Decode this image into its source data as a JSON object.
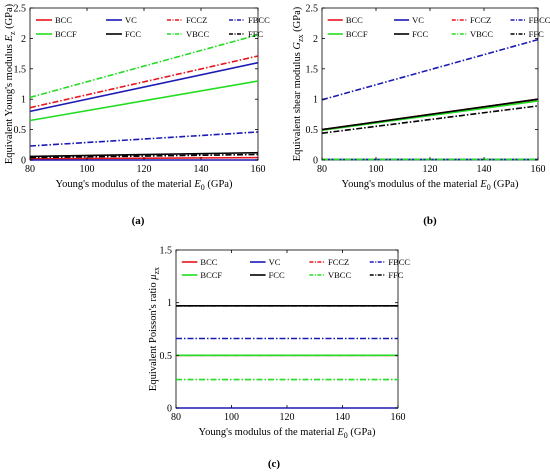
{
  "chart_data": [
    {
      "type": "line",
      "panel_label": "(a)",
      "xlabel_prefix": "Young's modulus of the material ",
      "xlabel_symbol": "E",
      "xlabel_sub": "0",
      "xlabel_suffix": " (GPa)",
      "ylabel_prefix": "Equivalent Young's modulus ",
      "ylabel_symbol": "E",
      "ylabel_sub": "z",
      "ylabel_suffix": " (GPa)",
      "xlim": [
        80,
        160
      ],
      "ylim": [
        0,
        2.5
      ],
      "xticks": [
        80,
        100,
        120,
        140,
        160
      ],
      "yticks": [
        0,
        0.5,
        1,
        1.5,
        2,
        2.5
      ],
      "yticklabels": [
        "0",
        "0.5",
        "1",
        "1.5",
        "2",
        "2.5"
      ],
      "grid": false,
      "legend_position": "top",
      "series": [
        {
          "name": "BCC",
          "color": "#e8141c",
          "dash": "solid",
          "x": [
            80,
            160
          ],
          "y": [
            0.02,
            0.04
          ]
        },
        {
          "name": "VC",
          "color": "#1a1ab4",
          "dash": "solid",
          "x": [
            80,
            160
          ],
          "y": [
            0.0,
            0.0
          ]
        },
        {
          "name": "FCCZ",
          "color": "#e8141c",
          "dash": "dashdot",
          "x": [
            80,
            160
          ],
          "y": [
            0.86,
            1.71
          ]
        },
        {
          "name": "FBCC",
          "color": "#1a1ab4",
          "dash": "dashdot",
          "x": [
            80,
            160
          ],
          "y": [
            0.23,
            0.46
          ]
        },
        {
          "name": "BCCF",
          "color": "#22dd22",
          "dash": "solid",
          "x": [
            80,
            160
          ],
          "y": [
            0.65,
            1.3
          ]
        },
        {
          "name": "FCC",
          "color": "#000000",
          "dash": "solid",
          "x": [
            80,
            160
          ],
          "y": [
            0.06,
            0.12
          ]
        },
        {
          "name": "VBCC",
          "color": "#22dd22",
          "dash": "dashdot",
          "x": [
            80,
            160
          ],
          "y": [
            1.03,
            2.06
          ]
        },
        {
          "name": "FFC",
          "color": "#000000",
          "dash": "dashdot",
          "x": [
            80,
            160
          ],
          "y": [
            0.04,
            0.09
          ]
        },
        {
          "name": "",
          "color": "#1a1ab4",
          "dash": "solid",
          "x": [
            80,
            160
          ],
          "y": [
            0.8,
            1.6
          ]
        }
      ]
    },
    {
      "type": "line",
      "panel_label": "(b)",
      "xlabel_prefix": "Young's modulus of the material ",
      "xlabel_symbol": "E",
      "xlabel_sub": "0",
      "xlabel_suffix": " (GPa)",
      "ylabel_prefix": "Equivalent shear modulus ",
      "ylabel_symbol": "G",
      "ylabel_sub": "zx",
      "ylabel_suffix": " (GPa)",
      "xlim": [
        80,
        160
      ],
      "ylim": [
        0,
        2.5
      ],
      "xticks": [
        80,
        100,
        120,
        140,
        160
      ],
      "yticks": [
        0,
        0.5,
        1,
        1.5,
        2,
        2.5
      ],
      "yticklabels": [
        "0",
        "0.5",
        "1",
        "1.5",
        "2",
        "2.5"
      ],
      "grid": false,
      "legend_position": "top",
      "series": [
        {
          "name": "BCC",
          "color": "#e8141c",
          "dash": "solid",
          "x": [
            80,
            160
          ],
          "y": [
            0.5,
            1.0
          ]
        },
        {
          "name": "VC",
          "color": "#1a1ab4",
          "dash": "solid",
          "x": [
            80,
            160
          ],
          "y": [
            0.01,
            0.01
          ]
        },
        {
          "name": "FCCZ",
          "color": "#e8141c",
          "dash": "dashdot",
          "x": [
            80,
            160
          ],
          "y": [
            0.49,
            0.98
          ]
        },
        {
          "name": "FBCC",
          "color": "#1a1ab4",
          "dash": "dashdot",
          "x": [
            80,
            160
          ],
          "y": [
            0.99,
            1.98
          ]
        },
        {
          "name": "BCCF",
          "color": "#22dd22",
          "dash": "solid",
          "x": [
            80,
            160
          ],
          "y": [
            0.49,
            0.97
          ]
        },
        {
          "name": "FCC",
          "color": "#000000",
          "dash": "solid",
          "x": [
            80,
            160
          ],
          "y": [
            0.5,
            1.0
          ]
        },
        {
          "name": "VBCC",
          "color": "#22dd22",
          "dash": "dashdot",
          "x": [
            80,
            160
          ],
          "y": [
            0.01,
            0.01
          ]
        },
        {
          "name": "FFC",
          "color": "#000000",
          "dash": "dashdot",
          "x": [
            80,
            160
          ],
          "y": [
            0.44,
            0.89
          ]
        }
      ]
    },
    {
      "type": "line",
      "panel_label": "(c)",
      "xlabel_prefix": "Young's modulus of the material ",
      "xlabel_symbol": "E",
      "xlabel_sub": "0",
      "xlabel_suffix": " (GPa)",
      "ylabel_prefix": "Equivalent Poisson's ratio ",
      "ylabel_symbol": "μ",
      "ylabel_sub": "zx",
      "ylabel_suffix": "",
      "xlim": [
        80,
        160
      ],
      "ylim": [
        0,
        1.5
      ],
      "xticks": [
        80,
        100,
        120,
        140,
        160
      ],
      "yticks": [
        0,
        0.5,
        1,
        1.5
      ],
      "yticklabels": [
        "0",
        "0.5",
        "1",
        "1.5"
      ],
      "grid": false,
      "legend_position": "top",
      "series": [
        {
          "name": "BCC",
          "color": "#e8141c",
          "dash": "solid",
          "x": [
            80,
            160
          ],
          "y": [
            0.5,
            0.5
          ]
        },
        {
          "name": "VC",
          "color": "#1a1ab4",
          "dash": "solid",
          "x": [
            80,
            160
          ],
          "y": [
            0.0,
            0.0
          ]
        },
        {
          "name": "FCCZ",
          "color": "#e8141c",
          "dash": "dashdot",
          "x": [
            80,
            160
          ],
          "y": [
            0.5,
            0.5
          ]
        },
        {
          "name": "FBCC",
          "color": "#1a1ab4",
          "dash": "dashdot",
          "x": [
            80,
            160
          ],
          "y": [
            0.66,
            0.66
          ]
        },
        {
          "name": "BCCF",
          "color": "#22dd22",
          "dash": "solid",
          "x": [
            80,
            160
          ],
          "y": [
            0.5,
            0.5
          ]
        },
        {
          "name": "FCC",
          "color": "#000000",
          "dash": "solid",
          "x": [
            80,
            160
          ],
          "y": [
            0.97,
            0.97
          ]
        },
        {
          "name": "VBCC",
          "color": "#22dd22",
          "dash": "dashdot",
          "x": [
            80,
            160
          ],
          "y": [
            0.27,
            0.27
          ]
        },
        {
          "name": "FFC",
          "color": "#000000",
          "dash": "dashdot",
          "x": [
            80,
            160
          ],
          "y": [
            0.97,
            0.97
          ]
        }
      ]
    }
  ]
}
